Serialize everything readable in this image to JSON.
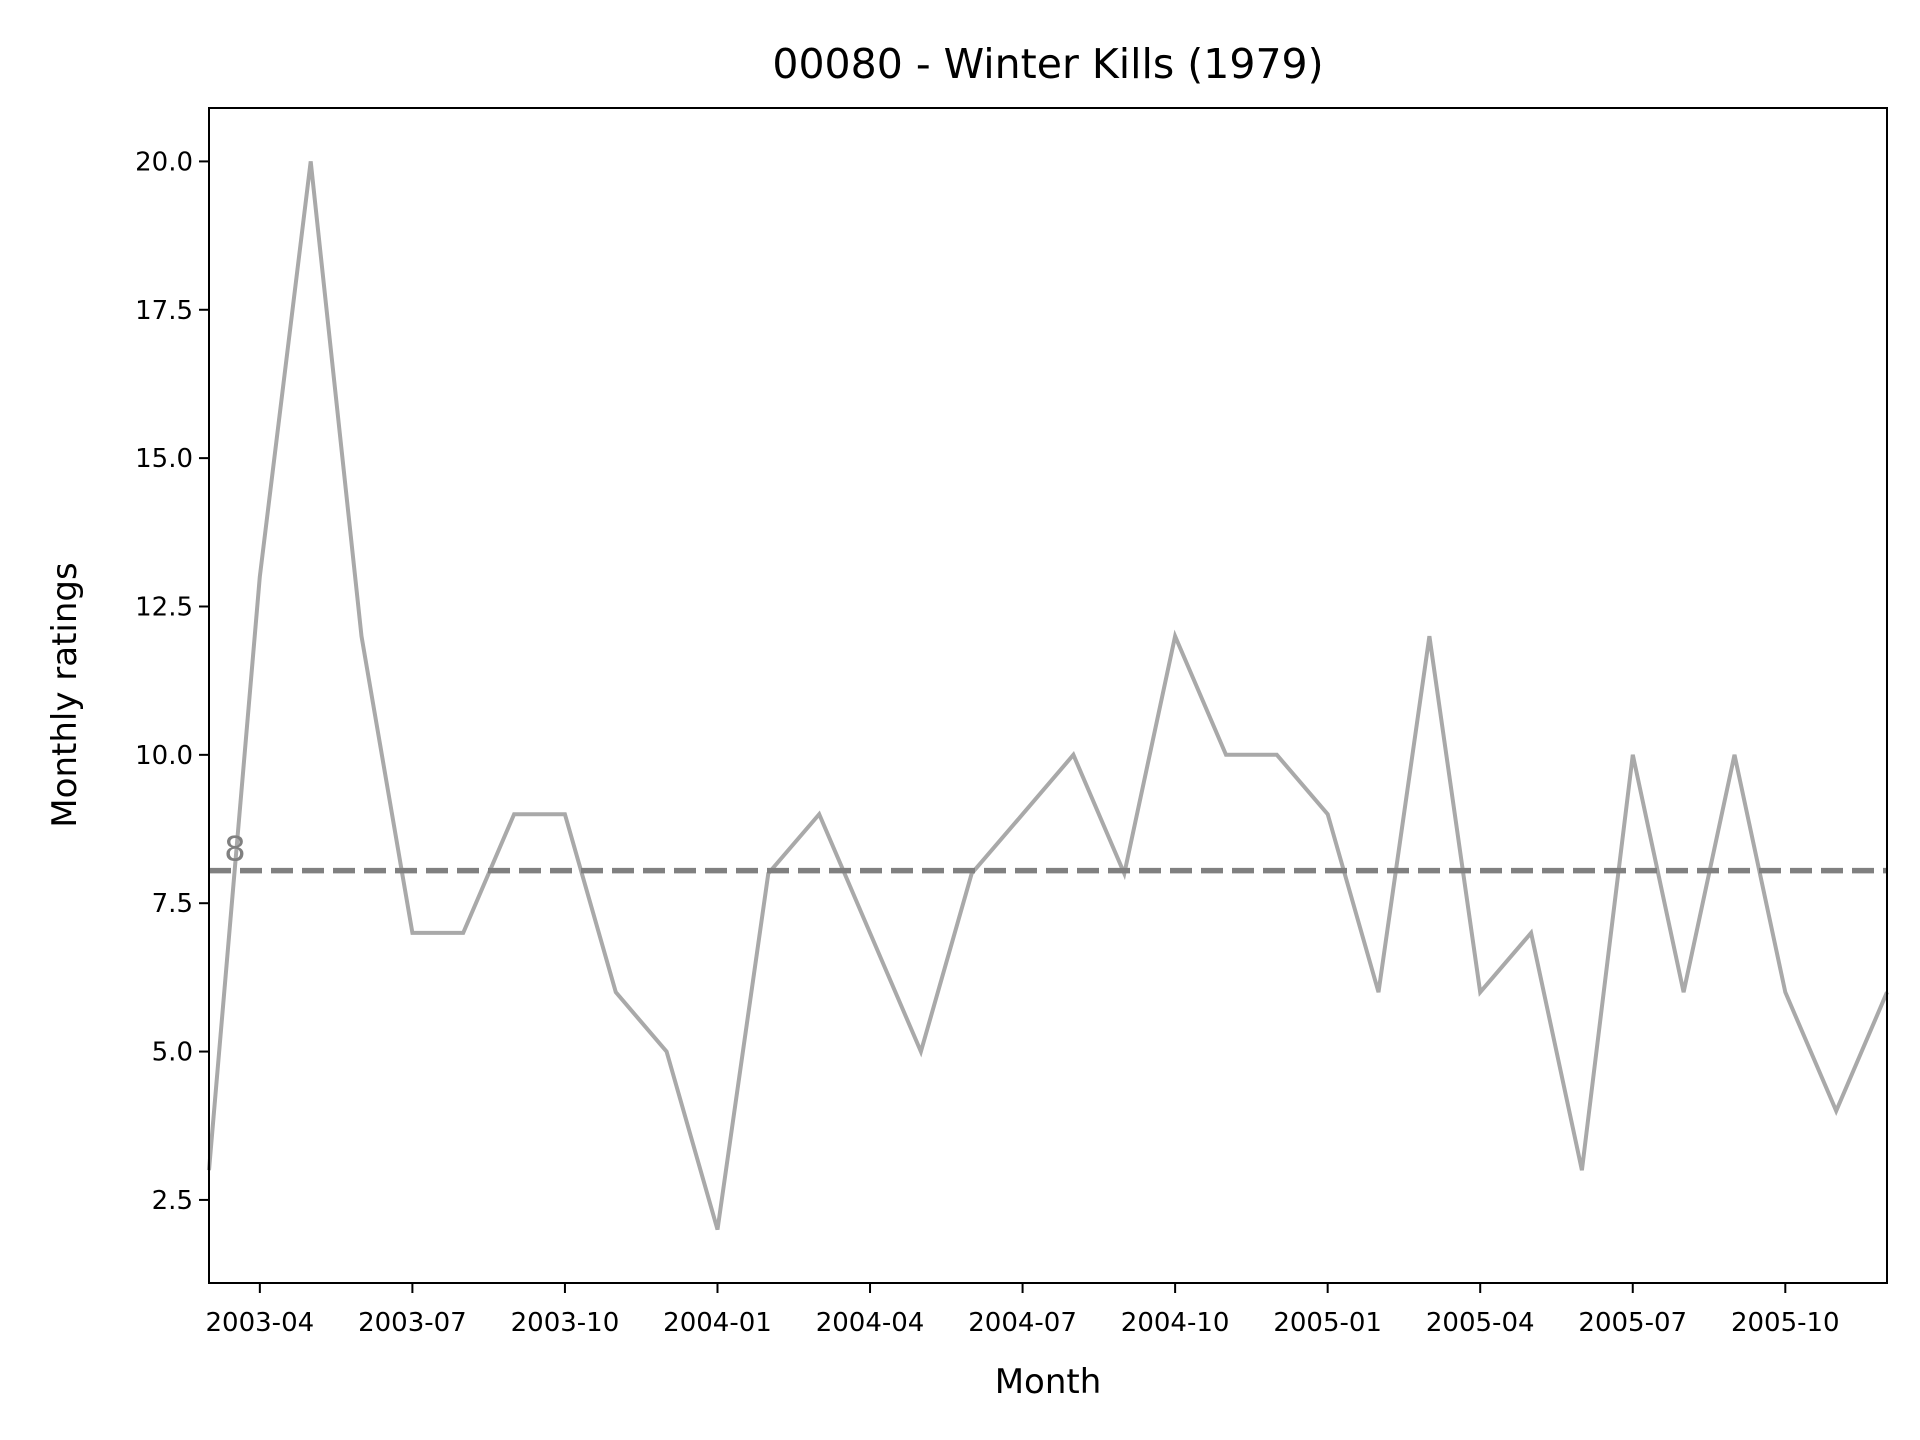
{
  "chart_data": {
    "type": "line",
    "title": "00080 - Winter Kills (1979)",
    "xlabel": "Month",
    "ylabel": "Monthly ratings",
    "xlim": [
      "2003-03",
      "2005-12"
    ],
    "ylim": [
      1.1,
      20.9
    ],
    "x_ticks": [
      "2003-04",
      "2003-07",
      "2003-10",
      "2004-01",
      "2004-04",
      "2004-07",
      "2004-10",
      "2005-01",
      "2005-04",
      "2005-07",
      "2005-10"
    ],
    "y_ticks": [
      {
        "value": 2.5,
        "label": "2.5"
      },
      {
        "value": 5.0,
        "label": "5.0"
      },
      {
        "value": 7.5,
        "label": "7.5"
      },
      {
        "value": 10.0,
        "label": "10.0"
      },
      {
        "value": 12.5,
        "label": "12.5"
      },
      {
        "value": 15.0,
        "label": "15.0"
      },
      {
        "value": 17.5,
        "label": "17.5"
      },
      {
        "value": 20.0,
        "label": "20.0"
      }
    ],
    "grid": false,
    "series": [
      {
        "color": "#a9a9a9",
        "x": [
          "2003-03",
          "2003-04",
          "2003-05",
          "2003-06",
          "2003-07",
          "2003-08",
          "2003-09",
          "2003-10",
          "2003-11",
          "2003-12",
          "2004-01",
          "2004-02",
          "2004-03",
          "2004-04",
          "2004-05",
          "2004-06",
          "2004-07",
          "2004-08",
          "2004-09",
          "2004-10",
          "2004-11",
          "2004-12",
          "2005-01",
          "2005-02",
          "2005-03",
          "2005-04",
          "2005-05",
          "2005-06",
          "2005-07",
          "2005-08",
          "2005-09",
          "2005-10",
          "2005-11",
          "2005-12"
        ],
        "values": [
          3,
          13,
          20,
          12,
          7,
          7,
          9,
          9,
          6,
          5,
          2,
          8,
          9,
          7,
          5,
          8,
          9,
          10,
          8,
          12,
          10,
          10,
          9,
          6,
          12,
          6,
          7,
          3,
          10,
          6,
          10,
          6,
          4,
          6
        ]
      }
    ],
    "reference_line": {
      "value": 8.05,
      "label": "8",
      "style": "dashed",
      "color": "#808080"
    }
  }
}
